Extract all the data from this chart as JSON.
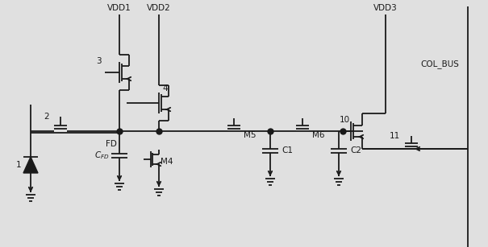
{
  "bg_color": "#e0e0e0",
  "lc": "#1a1a1a",
  "lw": 1.3,
  "figsize": [
    6.05,
    3.07
  ],
  "dpi": 100,
  "labels": {
    "vdd1": "VDD1",
    "vdd2": "VDD2",
    "vdd3": "VDD3",
    "col_bus": "COL_BUS",
    "fd": "FD",
    "cfd": "$C_{FD}$",
    "m4": "M4",
    "m5": "M5",
    "m6": "M6",
    "c1": "C1",
    "c2": "C2",
    "n1": "1",
    "n2": "2",
    "n3": "3",
    "n4": "4",
    "n10": "10",
    "n11": "11"
  }
}
